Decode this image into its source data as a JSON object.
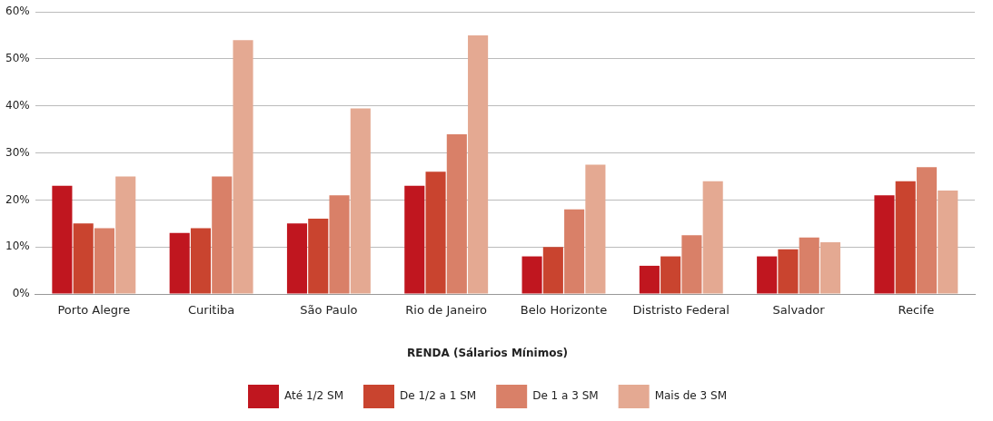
{
  "chart_data": {
    "type": "bar",
    "categories": [
      "Porto Alegre",
      "Curitiba",
      "São Paulo",
      "Rio de Janeiro",
      "Belo Horizonte",
      "Distristo Federal",
      "Salvador",
      "Recife"
    ],
    "series": [
      {
        "name": "Até 1/2 SM",
        "color": "#c0161f",
        "values": [
          23,
          13,
          15,
          23,
          8,
          6,
          8,
          21
        ]
      },
      {
        "name": "De 1/2 a 1 SM",
        "color": "#c9442f",
        "values": [
          15,
          14,
          16,
          26,
          10,
          8,
          9.5,
          24
        ]
      },
      {
        "name": "De 1 a 3 SM",
        "color": "#d98068",
        "values": [
          14,
          25,
          21,
          34,
          18,
          12.5,
          12,
          27
        ]
      },
      {
        "name": "Mais de 3 SM",
        "color": "#e4a992",
        "values": [
          25,
          54,
          39.5,
          55,
          27.5,
          24,
          11,
          22
        ]
      }
    ],
    "ylim": [
      0,
      60
    ],
    "yticks": [
      {
        "value": 0,
        "label": "0%"
      },
      {
        "value": 10,
        "label": "10%"
      },
      {
        "value": 20,
        "label": "20%"
      },
      {
        "value": 30,
        "label": "30%"
      },
      {
        "value": 40,
        "label": "40%"
      },
      {
        "value": 50,
        "label": "50%"
      },
      {
        "value": 60,
        "label": "60%"
      }
    ],
    "grid": "y",
    "legend": "bottom",
    "legend_title": "RENDA (Sálarios Mínimos)"
  }
}
